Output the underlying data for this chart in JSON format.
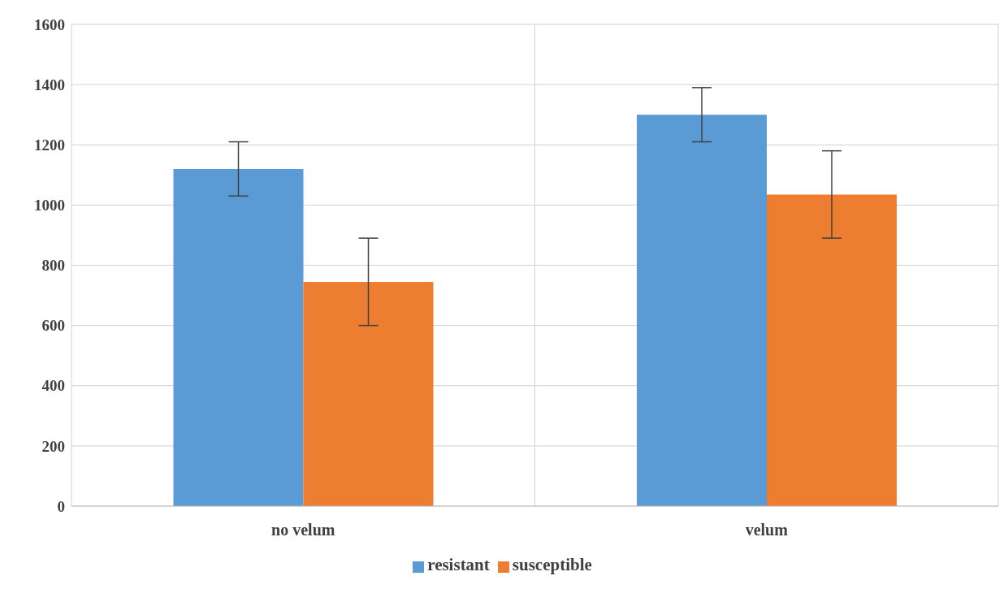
{
  "chart_data": {
    "type": "bar",
    "categories": [
      "no velum",
      "velum"
    ],
    "series": [
      {
        "name": "resistant",
        "color": "#5b9bd5",
        "values": [
          1120,
          1300
        ],
        "errors": [
          90,
          90
        ]
      },
      {
        "name": "susceptible",
        "color": "#ed7d31",
        "values": [
          745,
          1035
        ],
        "errors": [
          145,
          145
        ]
      }
    ],
    "ylim": [
      0,
      1600
    ],
    "yticks": [
      0,
      200,
      400,
      600,
      800,
      1000,
      1200,
      1400,
      1600
    ],
    "grid": true,
    "legend": "bottom"
  }
}
